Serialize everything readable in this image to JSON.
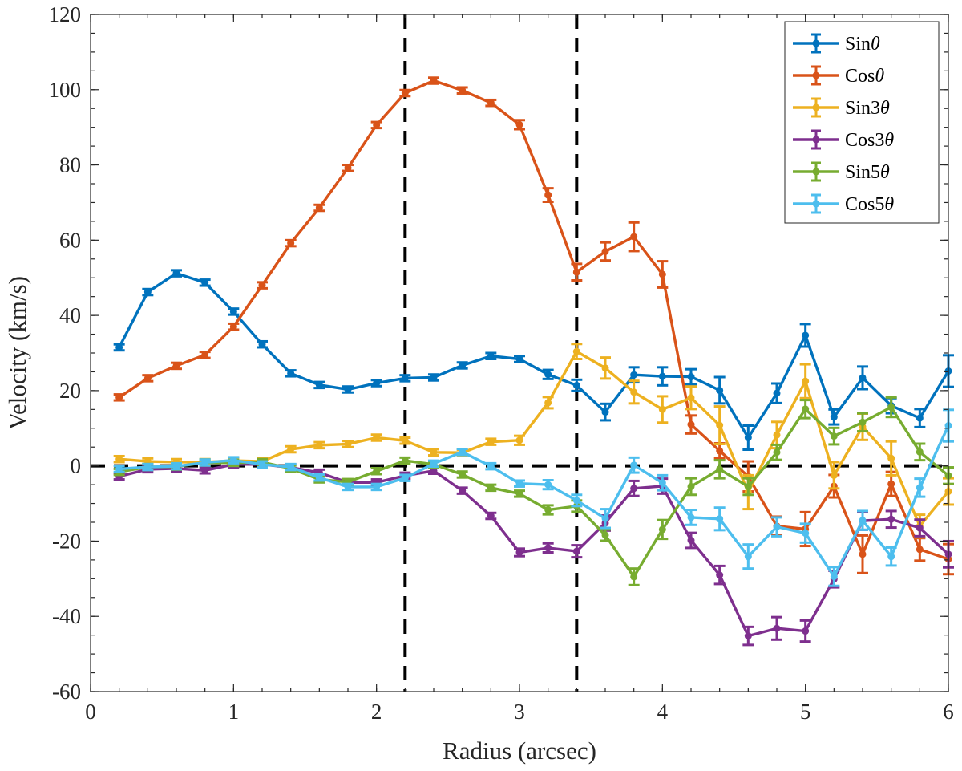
{
  "chart_data": {
    "type": "line",
    "title": "",
    "xlabel": "Radius (arcsec)",
    "ylabel": "Velocity (km/s)",
    "xlim": [
      0,
      6
    ],
    "ylim": [
      -60,
      120
    ],
    "xticks": [
      "0",
      "1",
      "2",
      "3",
      "4",
      "5",
      "6"
    ],
    "yticks": [
      "-60",
      "-40",
      "-20",
      "0",
      "20",
      "40",
      "60",
      "80",
      "100",
      "120"
    ],
    "grid": false,
    "legend_position": "top-right",
    "reference_lines": {
      "horizontal": [
        0
      ],
      "vertical": [
        2.2,
        3.4
      ]
    },
    "x": [
      0.2,
      0.4,
      0.6,
      0.8,
      1.0,
      1.2,
      1.4,
      1.6,
      1.8,
      2.0,
      2.2,
      2.4,
      2.6,
      2.8,
      3.0,
      3.2,
      3.4,
      3.6,
      3.8,
      4.0,
      4.2,
      4.4,
      4.6,
      4.8,
      5.0,
      5.2,
      5.4,
      5.6,
      5.8,
      6.0
    ],
    "series": [
      {
        "name": "Sinθ",
        "name_base": "Sin",
        "color": "#0072BD",
        "values": [
          31.5,
          46.2,
          51.2,
          48.7,
          41.0,
          32.3,
          24.6,
          21.5,
          20.3,
          22.0,
          23.3,
          23.5,
          26.7,
          29.2,
          28.4,
          24.3,
          21.4,
          14.3,
          24.2,
          23.8,
          23.7,
          20.1,
          7.5,
          19.3,
          34.7,
          13.0,
          23.4,
          16.0,
          12.7,
          25.2
        ],
        "errors": [
          0.8,
          0.8,
          0.8,
          0.8,
          0.8,
          0.8,
          0.8,
          0.8,
          0.8,
          0.8,
          0.8,
          0.8,
          0.8,
          0.8,
          0.8,
          1.2,
          1.5,
          2.2,
          2.0,
          2.4,
          2.0,
          3.5,
          3.2,
          2.6,
          3.0,
          2.0,
          3.0,
          2.0,
          2.4,
          4.2
        ]
      },
      {
        "name": "Cosθ",
        "name_base": "Cos",
        "color": "#D95319",
        "values": [
          18.2,
          23.3,
          26.6,
          29.5,
          37.0,
          48.0,
          59.2,
          68.6,
          79.2,
          90.6,
          99.1,
          102.4,
          99.8,
          96.5,
          90.7,
          72.0,
          51.5,
          57.0,
          60.9,
          50.9,
          11.0,
          4.0,
          -2.8,
          -16.0,
          -16.8,
          -5.4,
          -23.5,
          -4.8,
          -22.2,
          -24.8
        ],
        "errors": [
          0.8,
          0.8,
          0.8,
          0.8,
          0.8,
          0.8,
          0.8,
          0.8,
          0.8,
          0.8,
          0.8,
          0.8,
          0.8,
          0.8,
          1.2,
          1.8,
          2.2,
          2.4,
          3.8,
          3.5,
          2.4,
          2.0,
          4.0,
          2.5,
          4.5,
          3.0,
          5.0,
          3.2,
          3.0,
          4.0
        ]
      },
      {
        "name": "Sin3θ",
        "name_base": "Sin3",
        "color": "#EDB120",
        "values": [
          1.8,
          1.2,
          1.0,
          1.0,
          1.4,
          1.2,
          4.4,
          5.5,
          5.8,
          7.5,
          6.7,
          3.6,
          3.5,
          6.4,
          6.8,
          16.8,
          30.4,
          26.0,
          19.6,
          15.0,
          18.1,
          10.8,
          -7.0,
          8.2,
          22.5,
          -2.5,
          10.4,
          2.0,
          -16.0,
          -6.8
        ],
        "errors": [
          0.8,
          0.8,
          0.8,
          0.8,
          0.8,
          0.8,
          0.8,
          0.8,
          0.8,
          0.8,
          0.8,
          0.8,
          0.8,
          0.8,
          1.2,
          1.5,
          2.0,
          2.8,
          3.0,
          3.5,
          3.0,
          5.0,
          4.5,
          3.5,
          4.5,
          3.5,
          3.5,
          4.5,
          3.0,
          3.5
        ]
      },
      {
        "name": "Cos3θ",
        "name_base": "Cos3",
        "color": "#7E2F8E",
        "values": [
          -2.8,
          -0.9,
          -0.7,
          -1.2,
          0.4,
          0.4,
          -0.4,
          -1.8,
          -4.4,
          -4.4,
          -2.6,
          -1.3,
          -6.6,
          -13.3,
          -23.0,
          -21.8,
          -22.7,
          -15.2,
          -6.0,
          -5.4,
          -19.8,
          -29.0,
          -45.2,
          -43.2,
          -43.9,
          -30.1,
          -14.6,
          -14.2,
          -16.5,
          -23.5
        ],
        "errors": [
          0.8,
          0.8,
          0.8,
          0.8,
          0.8,
          0.8,
          0.8,
          0.8,
          0.8,
          0.8,
          0.8,
          0.8,
          0.8,
          0.8,
          1.0,
          1.2,
          1.6,
          2.0,
          2.0,
          2.0,
          2.0,
          2.4,
          2.4,
          3.0,
          2.8,
          2.2,
          2.4,
          2.2,
          2.2,
          3.5
        ]
      },
      {
        "name": "Sin5θ",
        "name_base": "Sin5",
        "color": "#77AC30",
        "values": [
          -1.6,
          -0.3,
          -0.2,
          0.9,
          0.8,
          1.0,
          -0.7,
          -3.6,
          -4.3,
          -1.4,
          1.4,
          0.4,
          -2.3,
          -5.8,
          -7.4,
          -11.7,
          -10.7,
          -18.4,
          -29.5,
          -16.9,
          -5.5,
          -0.9,
          -5.5,
          3.6,
          15.1,
          7.9,
          11.6,
          15.6,
          3.7,
          -2.6
        ],
        "errors": [
          0.8,
          0.8,
          0.8,
          0.8,
          0.8,
          0.8,
          0.8,
          0.8,
          0.8,
          0.8,
          0.8,
          0.8,
          0.8,
          0.8,
          0.8,
          1.2,
          1.5,
          1.5,
          2.2,
          2.5,
          2.2,
          2.4,
          2.2,
          2.0,
          2.4,
          2.2,
          2.4,
          2.6,
          2.2,
          2.2
        ]
      },
      {
        "name": "Cos5θ",
        "name_base": "Cos5",
        "color": "#4DBEEE",
        "values": [
          -0.8,
          -0.3,
          -0.1,
          0.9,
          1.5,
          0.4,
          -0.3,
          -3.1,
          -5.6,
          -5.6,
          -3.2,
          0.6,
          3.7,
          -0.1,
          -4.7,
          -5.0,
          -9.2,
          -14.0,
          0.2,
          -4.5,
          -13.7,
          -14.1,
          -24.1,
          -16.2,
          -17.9,
          -29.4,
          -14.5,
          -24.1,
          -5.8,
          10.7
        ],
        "errors": [
          0.8,
          0.8,
          0.8,
          0.8,
          0.8,
          0.8,
          0.8,
          0.8,
          0.8,
          0.8,
          0.8,
          0.8,
          0.8,
          0.8,
          0.8,
          1.2,
          1.5,
          2.5,
          2.0,
          2.0,
          2.0,
          3.0,
          3.2,
          2.5,
          2.5,
          2.5,
          2.5,
          2.4,
          2.4,
          4.2
        ]
      }
    ]
  }
}
